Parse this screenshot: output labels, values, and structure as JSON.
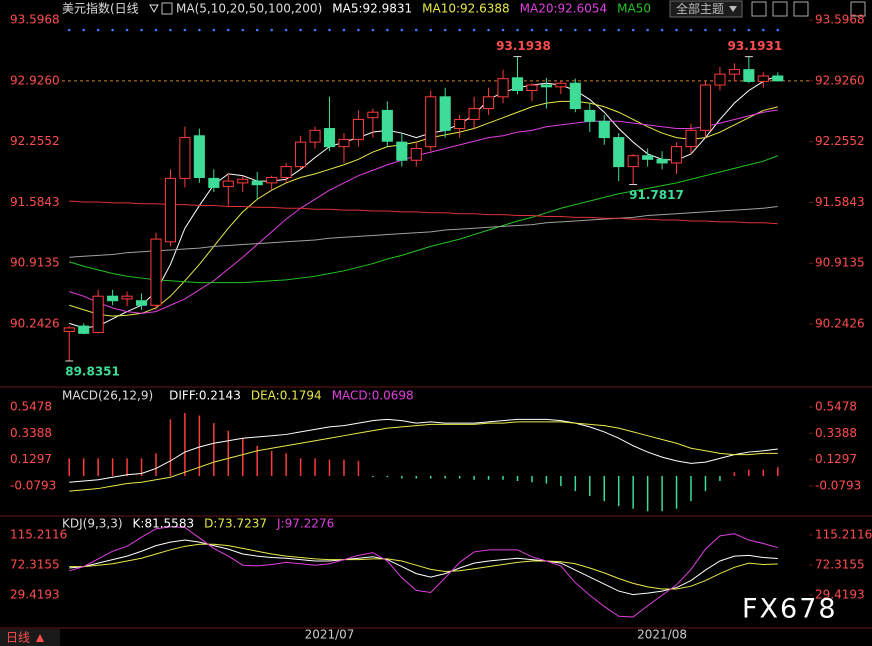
{
  "header": {
    "title": "美元指数(日线",
    "theme_button": "全部主题"
  },
  "footer": {
    "period": "日线"
  },
  "watermark": "FX678",
  "chart_data": [
    {
      "type": "candlestick",
      "indicator": "MA(5,10,20,50,100,200)",
      "categories": [
        null,
        null,
        null,
        null,
        null,
        null,
        null,
        null,
        null,
        null,
        null,
        null,
        null,
        null,
        null,
        null,
        null,
        null,
        "2021/07",
        null,
        null,
        null,
        null,
        null,
        null,
        null,
        null,
        null,
        null,
        null,
        null,
        null,
        null,
        null,
        null,
        null,
        null,
        null,
        null,
        null,
        null,
        "2021/08",
        null,
        null,
        null,
        null,
        null,
        null,
        null,
        null
      ],
      "open": [
        90.16,
        90.22,
        90.15,
        90.55,
        90.52,
        90.5,
        90.45,
        91.15,
        91.85,
        92.32,
        91.85,
        91.76,
        91.8,
        91.82,
        91.8,
        91.86,
        91.98,
        92.25,
        92.4,
        92.2,
        92.28,
        92.52,
        92.6,
        92.25,
        92.05,
        92.2,
        92.75,
        92.4,
        92.5,
        92.62,
        92.75,
        92.96,
        92.82,
        92.88,
        92.86,
        92.9,
        92.6,
        92.48,
        92.3,
        91.98,
        92.1,
        92.06,
        92.02,
        92.2,
        92.38,
        92.88,
        93.0,
        93.05,
        92.92,
        92.98
      ],
      "high": [
        90.22,
        90.25,
        90.62,
        90.62,
        90.6,
        90.58,
        91.25,
        91.95,
        92.42,
        92.4,
        91.95,
        91.9,
        91.88,
        91.92,
        91.88,
        92.02,
        92.32,
        92.42,
        92.75,
        92.35,
        92.6,
        92.62,
        92.7,
        92.35,
        92.25,
        92.82,
        92.85,
        92.55,
        92.75,
        92.85,
        93.05,
        93.1938,
        92.9,
        92.96,
        92.92,
        92.95,
        92.68,
        92.55,
        92.35,
        92.12,
        92.18,
        92.15,
        92.25,
        92.45,
        92.92,
        93.08,
        93.12,
        93.1931,
        93.02,
        93.02
      ],
      "low": [
        89.8351,
        90.13,
        90.14,
        90.45,
        90.44,
        90.4,
        90.4,
        91.1,
        91.75,
        91.8,
        91.7,
        91.55,
        91.7,
        91.62,
        91.72,
        91.8,
        91.95,
        92.18,
        92.15,
        92.02,
        92.2,
        92.3,
        92.2,
        91.98,
        91.98,
        92.15,
        92.3,
        92.3,
        92.4,
        92.55,
        92.68,
        92.78,
        92.7,
        92.62,
        92.78,
        92.58,
        92.36,
        92.22,
        91.82,
        91.7817,
        91.98,
        91.95,
        91.9,
        92.12,
        92.3,
        92.82,
        92.92,
        92.9,
        92.85,
        92.92
      ],
      "close": [
        90.2,
        90.14,
        90.55,
        90.5,
        90.55,
        90.45,
        91.18,
        91.85,
        92.3,
        91.86,
        91.75,
        91.82,
        91.84,
        91.78,
        91.86,
        91.98,
        92.25,
        92.38,
        92.2,
        92.28,
        92.5,
        92.58,
        92.26,
        92.05,
        92.18,
        92.75,
        92.38,
        92.5,
        92.62,
        92.75,
        92.95,
        92.82,
        92.88,
        92.86,
        92.9,
        92.62,
        92.48,
        92.3,
        91.98,
        92.1,
        92.06,
        92.02,
        92.2,
        92.38,
        92.88,
        93.0,
        93.05,
        92.92,
        92.98,
        92.926
      ],
      "up_color": "#ff3b3b",
      "down_color": "#3ddc97",
      "last_price_color": "#d0802f",
      "ylim": [
        89.57,
        93.73
      ],
      "yticks": [
        93.5968,
        {
          "value": 92.926,
          "label": "92.9260"
        },
        92.2552,
        91.5843,
        90.9135,
        90.2426
      ],
      "series": [
        {
          "name": "MA5:92.9831",
          "color": "#ffffff",
          "values": [
            90.25,
            90.2,
            90.22,
            90.3,
            90.38,
            90.45,
            90.6,
            90.9,
            91.3,
            91.55,
            91.78,
            91.9,
            91.88,
            91.82,
            91.82,
            91.84,
            91.95,
            92.08,
            92.2,
            92.25,
            92.3,
            92.36,
            92.38,
            92.35,
            92.3,
            92.35,
            92.38,
            92.45,
            92.55,
            92.72,
            92.8,
            92.85,
            92.88,
            92.9,
            92.88,
            92.82,
            92.72,
            92.58,
            92.4,
            92.25,
            92.12,
            92.06,
            92.05,
            92.12,
            92.3,
            92.5,
            92.68,
            92.82,
            92.92,
            92.9831
          ]
        },
        {
          "name": "MA10:92.6388",
          "color": "#e8e84a",
          "values": [
            90.45,
            90.4,
            90.35,
            90.33,
            90.34,
            90.36,
            90.42,
            90.55,
            90.72,
            90.9,
            91.1,
            91.3,
            91.48,
            91.62,
            91.72,
            91.8,
            91.86,
            91.9,
            91.95,
            92.0,
            92.06,
            92.14,
            92.2,
            92.22,
            92.25,
            92.3,
            92.33,
            92.36,
            92.4,
            92.46,
            92.52,
            92.58,
            92.64,
            92.68,
            92.7,
            92.7,
            92.68,
            92.64,
            92.58,
            92.5,
            92.42,
            92.35,
            92.3,
            92.28,
            92.3,
            92.36,
            92.44,
            92.52,
            92.6,
            92.6388
          ]
        },
        {
          "name": "MA20:92.6054",
          "color": "#e040e0",
          "values": [
            90.6,
            90.55,
            90.48,
            90.42,
            90.38,
            90.36,
            90.38,
            90.45,
            90.52,
            90.62,
            90.72,
            90.85,
            90.98,
            91.12,
            91.26,
            91.4,
            91.52,
            91.62,
            91.72,
            91.8,
            91.88,
            91.94,
            92.0,
            92.05,
            92.1,
            92.14,
            92.18,
            92.22,
            92.26,
            92.3,
            92.32,
            92.36,
            92.38,
            92.42,
            92.44,
            92.46,
            92.48,
            92.48,
            92.48,
            92.46,
            92.44,
            92.42,
            92.4,
            92.4,
            92.42,
            92.46,
            92.5,
            92.54,
            92.58,
            92.6054
          ]
        },
        {
          "name": "MA50",
          "color": "#22c422",
          "values": [
            90.93,
            90.88,
            90.84,
            90.8,
            90.77,
            90.75,
            90.73,
            90.72,
            90.71,
            90.7,
            90.7,
            90.7,
            90.7,
            90.71,
            90.72,
            90.73,
            90.75,
            90.77,
            90.8,
            90.83,
            90.87,
            90.91,
            90.96,
            91.0,
            91.05,
            91.1,
            91.14,
            91.18,
            91.23,
            91.28,
            91.33,
            91.38,
            91.42,
            91.47,
            91.52,
            91.56,
            91.6,
            91.64,
            91.68,
            91.71,
            91.74,
            91.77,
            91.8,
            91.84,
            91.88,
            91.92,
            91.96,
            92.0,
            92.04,
            92.1
          ]
        },
        {
          "color": "#a0a0a0",
          "values": [
            90.98,
            90.99,
            91.0,
            91.01,
            91.03,
            91.04,
            91.05,
            91.06,
            91.07,
            91.08,
            91.1,
            91.11,
            91.12,
            91.13,
            91.14,
            91.15,
            91.16,
            91.17,
            91.19,
            91.2,
            91.21,
            91.22,
            91.23,
            91.24,
            91.25,
            91.26,
            91.28,
            91.29,
            91.3,
            91.31,
            91.32,
            91.33,
            91.34,
            91.36,
            91.37,
            91.38,
            91.39,
            91.4,
            91.41,
            91.42,
            91.44,
            91.45,
            91.46,
            91.47,
            91.48,
            91.49,
            91.5,
            91.51,
            91.52,
            91.54
          ]
        },
        {
          "color": "#e03030",
          "values": [
            91.6,
            91.59,
            91.59,
            91.58,
            91.58,
            91.57,
            91.57,
            91.56,
            91.56,
            91.55,
            91.55,
            91.54,
            91.54,
            91.53,
            91.53,
            91.52,
            91.52,
            91.51,
            91.51,
            91.5,
            91.5,
            91.49,
            91.49,
            91.48,
            91.48,
            91.47,
            91.47,
            91.46,
            91.46,
            91.45,
            91.45,
            91.44,
            91.44,
            91.43,
            91.43,
            91.42,
            91.42,
            91.41,
            91.41,
            91.4,
            91.4,
            91.39,
            91.39,
            91.38,
            91.38,
            91.37,
            91.37,
            91.36,
            91.36,
            91.35
          ]
        }
      ]
    },
    {
      "type": "macd",
      "title": "MACD(26,12,9)",
      "ylim": [
        -0.31,
        0.683
      ],
      "yticks": [
        0.5478,
        0.3388,
        0.1297,
        -0.0793
      ],
      "series": [
        {
          "name": "DIFF:0.2143",
          "color": "#ffffff",
          "values": [
            -0.05,
            -0.04,
            -0.03,
            -0.01,
            0.01,
            0.02,
            0.06,
            0.12,
            0.19,
            0.23,
            0.26,
            0.28,
            0.3,
            0.31,
            0.32,
            0.33,
            0.35,
            0.37,
            0.39,
            0.4,
            0.42,
            0.44,
            0.45,
            0.44,
            0.42,
            0.43,
            0.42,
            0.42,
            0.42,
            0.43,
            0.44,
            0.45,
            0.45,
            0.45,
            0.44,
            0.42,
            0.39,
            0.35,
            0.3,
            0.24,
            0.19,
            0.15,
            0.12,
            0.1,
            0.11,
            0.14,
            0.17,
            0.19,
            0.2,
            0.2143
          ]
        },
        {
          "name": "DEA:0.1794",
          "color": "#e8e84a",
          "values": [
            -0.12,
            -0.11,
            -0.1,
            -0.08,
            -0.06,
            -0.05,
            -0.03,
            -0.01,
            0.03,
            0.07,
            0.11,
            0.14,
            0.17,
            0.2,
            0.22,
            0.24,
            0.26,
            0.28,
            0.3,
            0.32,
            0.34,
            0.36,
            0.38,
            0.39,
            0.4,
            0.41,
            0.41,
            0.41,
            0.41,
            0.42,
            0.42,
            0.43,
            0.43,
            0.43,
            0.43,
            0.42,
            0.41,
            0.4,
            0.38,
            0.35,
            0.32,
            0.29,
            0.26,
            0.22,
            0.2,
            0.18,
            0.17,
            0.17,
            0.18,
            0.1794
          ]
        },
        {
          "name": "MACD:0.0698",
          "color": "#e040e0",
          "style": "histogram",
          "up_color": "#ff3b3b",
          "down_color": "#3ddc97",
          "values": [
            0.14,
            0.14,
            0.14,
            0.14,
            0.14,
            0.14,
            0.18,
            0.45,
            0.5,
            0.48,
            0.42,
            0.36,
            0.3,
            0.24,
            0.2,
            0.18,
            0.14,
            0.14,
            0.13,
            0.13,
            0.12,
            -0.01,
            -0.01,
            -0.02,
            -0.02,
            -0.02,
            -0.02,
            -0.02,
            -0.03,
            -0.03,
            -0.03,
            -0.04,
            -0.05,
            -0.06,
            -0.08,
            -0.12,
            -0.16,
            -0.2,
            -0.24,
            -0.26,
            -0.28,
            -0.28,
            -0.26,
            -0.2,
            -0.12,
            -0.04,
            0.03,
            0.05,
            0.05,
            0.0698
          ]
        }
      ]
    },
    {
      "type": "line",
      "title": "KDJ(9,3,3)",
      "ylim": [
        -17.8,
        139.5
      ],
      "yticks": [
        115.2116,
        72.3155,
        29.4193
      ],
      "series": [
        {
          "name": "K:81.5583",
          "color": "#ffffff",
          "values": [
            68,
            70,
            75,
            80,
            85,
            92,
            100,
            105,
            108,
            105,
            100,
            95,
            88,
            85,
            83,
            82,
            80,
            78,
            78,
            80,
            82,
            84,
            80,
            70,
            60,
            55,
            60,
            68,
            75,
            78,
            80,
            82,
            80,
            78,
            75,
            65,
            55,
            45,
            35,
            30,
            32,
            35,
            40,
            50,
            65,
            78,
            85,
            86,
            83,
            81.5583
          ]
        },
        {
          "name": "D:73.7237",
          "color": "#e8e84a",
          "values": [
            70,
            70,
            72,
            74,
            78,
            82,
            88,
            94,
            99,
            102,
            102,
            100,
            96,
            92,
            88,
            85,
            83,
            81,
            80,
            80,
            80,
            81,
            81,
            78,
            72,
            66,
            63,
            64,
            67,
            70,
            73,
            76,
            78,
            78,
            77,
            74,
            68,
            61,
            53,
            46,
            41,
            38,
            38,
            42,
            50,
            60,
            69,
            75,
            73,
            73.7237
          ]
        },
        {
          "name": "J:97.2276",
          "color": "#e040e0",
          "values": [
            64,
            70,
            81,
            92,
            99,
            112,
            124,
            127,
            126,
            111,
            96,
            85,
            72,
            71,
            73,
            76,
            74,
            72,
            74,
            80,
            86,
            90,
            78,
            54,
            36,
            33,
            54,
            76,
            91,
            94,
            94,
            94,
            84,
            78,
            71,
            47,
            29,
            13,
            -1,
            -2,
            14,
            29,
            44,
            66,
            95,
            114,
            117,
            108,
            103,
            97.2276
          ]
        }
      ]
    }
  ]
}
